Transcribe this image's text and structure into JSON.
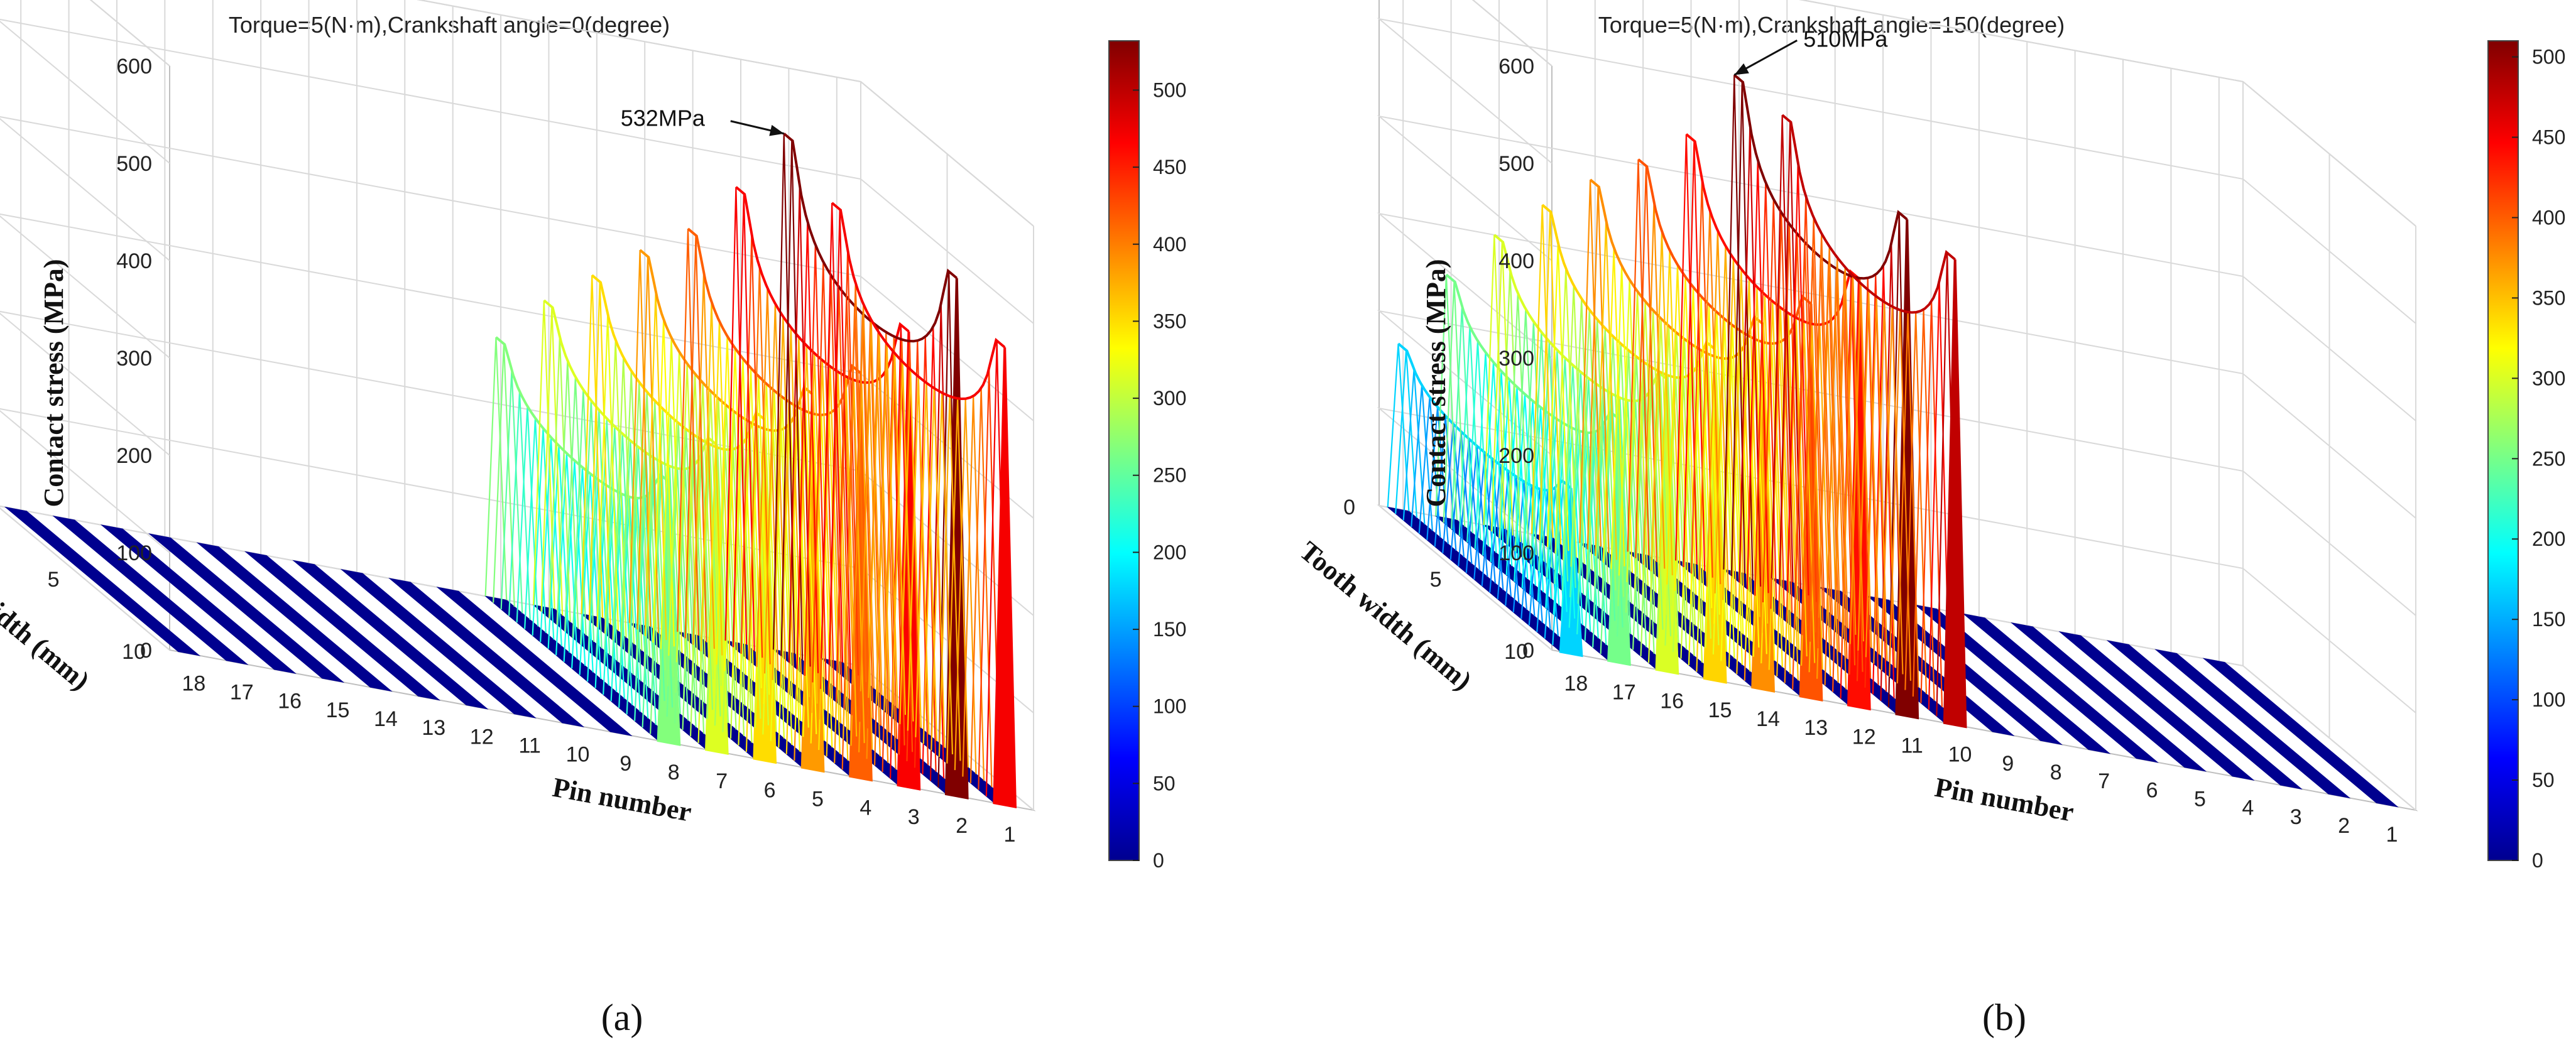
{
  "chart_data": [
    {
      "type": "surface3d",
      "panel_label": "(a)",
      "title": "Torque=5(N·m),Crankshaft angle=0(degree)",
      "zlabel": "Contact stress (MPa)",
      "ylabel": "Tooth width (mm)",
      "xlabel": "Pin number",
      "zlim": [
        0,
        600
      ],
      "z_ticks": [
        "0",
        "100",
        "200",
        "300",
        "400",
        "500",
        "600"
      ],
      "y_ticks": [
        "0",
        "5",
        "10"
      ],
      "x_ticks": [
        "18",
        "17",
        "16",
        "15",
        "14",
        "13",
        "12",
        "11",
        "10",
        "9",
        "8",
        "7",
        "6",
        "5",
        "4",
        "3",
        "2",
        "1"
      ],
      "pins": [
        1,
        2,
        3,
        4,
        5,
        6,
        7,
        8,
        9,
        10,
        11,
        12,
        13,
        14,
        15,
        16,
        17,
        18
      ],
      "peak_stress": [
        470,
        532,
        468,
        416,
        385,
        350,
        315,
        268,
        0,
        0,
        0,
        0,
        0,
        0,
        0,
        0,
        0,
        0
      ],
      "annotation": {
        "text": "532MPa",
        "pin": 2
      },
      "colorbar": {
        "min": 0,
        "max": 532,
        "ticks": [
          "0",
          "50",
          "100",
          "150",
          "200",
          "250",
          "300",
          "350",
          "400",
          "450",
          "500"
        ]
      }
    },
    {
      "type": "surface3d",
      "panel_label": "(b)",
      "title": "Torque=5(N·m),Crankshaft angle=150(degree)",
      "zlabel": "Contact stress (MPa)",
      "ylabel": "Tooth width (mm)",
      "xlabel": "Pin number",
      "zlim": [
        0,
        600
      ],
      "z_ticks": [
        "0",
        "100",
        "200",
        "300",
        "400",
        "500",
        "600"
      ],
      "y_ticks": [
        "0",
        "5",
        "10"
      ],
      "x_ticks": [
        "18",
        "17",
        "16",
        "15",
        "14",
        "13",
        "12",
        "11",
        "10",
        "9",
        "8",
        "7",
        "6",
        "5",
        "4",
        "3",
        "2",
        "1"
      ],
      "pins": [
        1,
        2,
        3,
        4,
        5,
        6,
        7,
        8,
        9,
        10,
        11,
        12,
        13,
        14,
        15,
        16,
        17,
        18
      ],
      "peak_stress": [
        0,
        0,
        0,
        0,
        0,
        0,
        0,
        0,
        0,
        478,
        510,
        440,
        405,
        375,
        340,
        300,
        250,
        170
      ],
      "annotation": {
        "text": "510MPa",
        "pin": 11
      },
      "colorbar": {
        "min": 0,
        "max": 510,
        "ticks": [
          "0",
          "50",
          "100",
          "150",
          "200",
          "250",
          "300",
          "350",
          "400",
          "450",
          "500"
        ]
      }
    }
  ]
}
